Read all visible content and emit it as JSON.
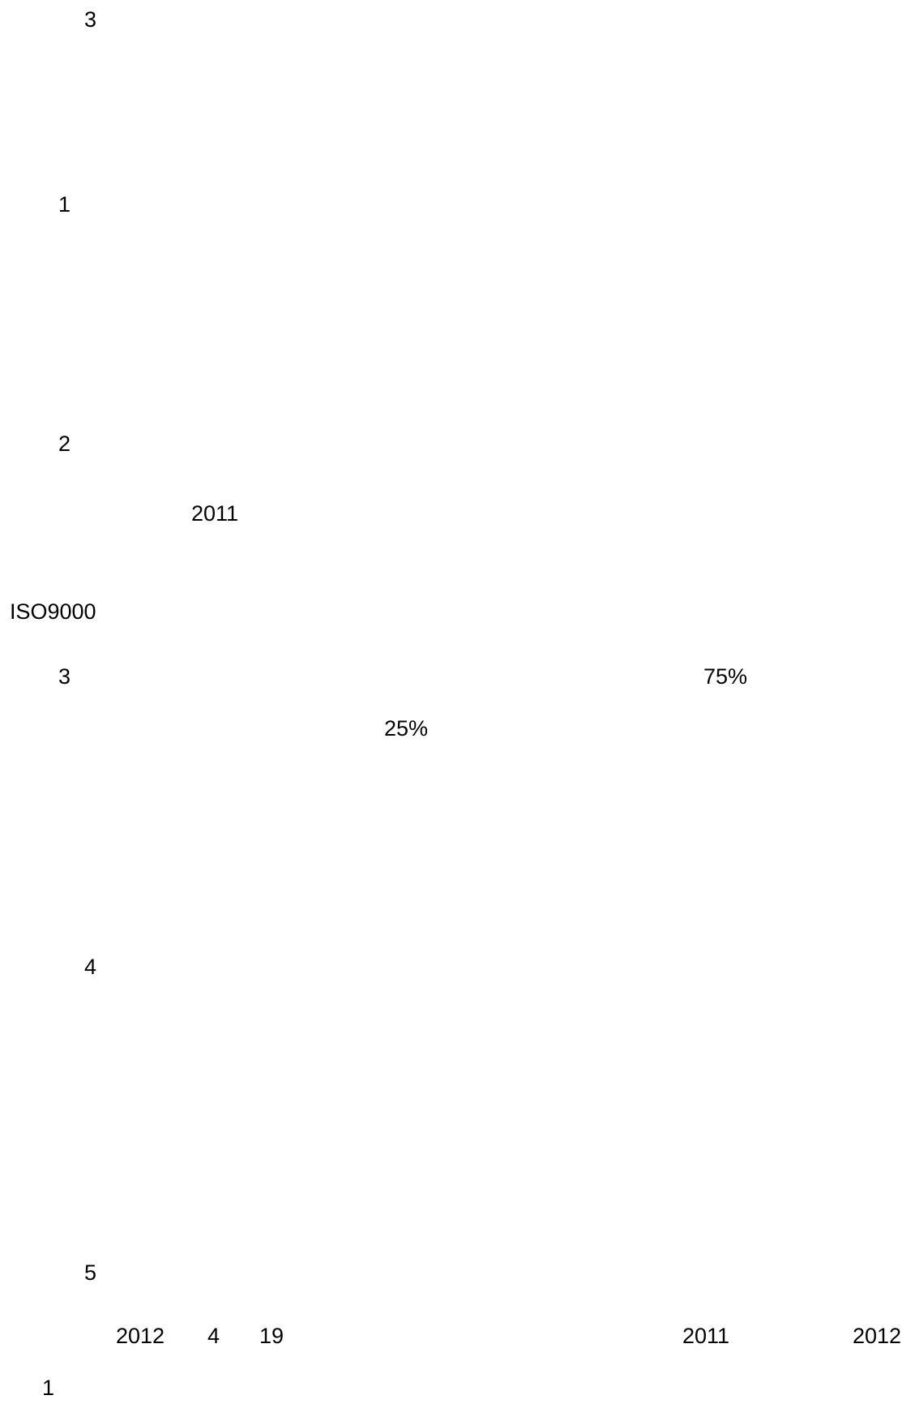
{
  "fragments": [
    "3",
    "1",
    "2",
    "2011",
    "ISO9000",
    "3",
    "75%",
    "25%",
    "4",
    "5",
    "2012",
    "4",
    "19",
    "2011",
    "2012",
    "1"
  ]
}
